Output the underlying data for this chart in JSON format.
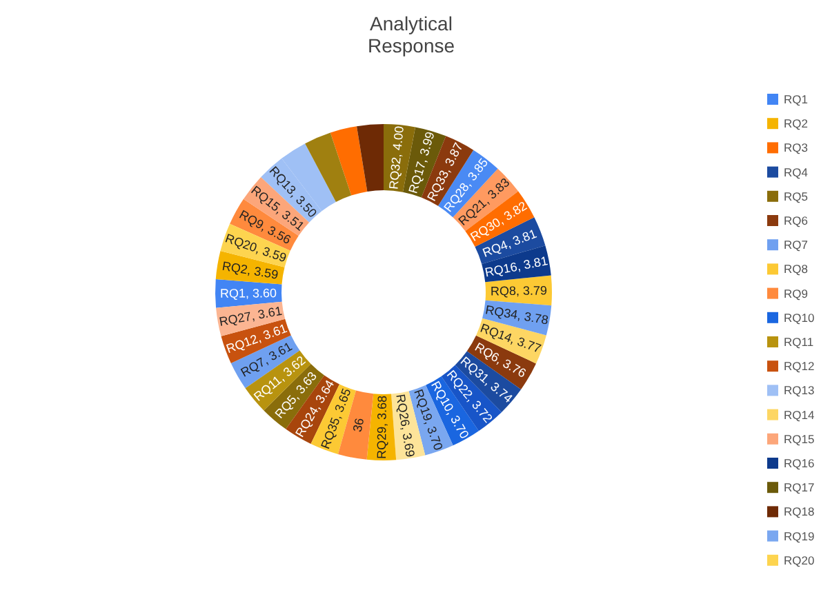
{
  "chart_data": {
    "type": "donut",
    "title": "Analytical\nResponse",
    "legend": "right",
    "categories": [
      "RQ1",
      "RQ2",
      "RQ3",
      "RQ4",
      "RQ5",
      "RQ6",
      "RQ7",
      "RQ8",
      "RQ9",
      "RQ10",
      "RQ11",
      "RQ12",
      "RQ13",
      "RQ14",
      "RQ15",
      "RQ16",
      "RQ17",
      "RQ18",
      "RQ19",
      "RQ20",
      null,
      null,
      null,
      null,
      null,
      null,
      null,
      null,
      null,
      null,
      null,
      null,
      null,
      null,
      null,
      "36"
    ],
    "values": [
      3.6,
      3.59,
      3.4,
      3.81,
      3.63,
      3.76,
      3.61,
      3.79,
      3.56,
      3.7,
      3.62,
      3.61,
      3.5,
      3.77,
      3.51,
      3.81,
      3.99,
      3.38,
      3.7,
      3.59,
      3.83,
      3.72,
      3.48,
      3.64,
      3.45,
      3.69,
      3.61,
      3.85,
      3.68,
      3.82,
      3.74,
      4.0,
      3.87,
      3.78,
      3.65,
      3.66
    ],
    "value_labels": [
      "RQ1, 3.60",
      "RQ2, 3.59",
      null,
      "RQ4, 3.81",
      "RQ5, 3.63",
      "RQ6, 3.76",
      "RQ7, 3.61",
      "RQ8, 3.79",
      "RQ9, 3.56",
      "RQ10, 3.70",
      "RQ11, 3.62",
      "RQ12, 3.61",
      "RQ13, 3.50",
      "RQ14, 3.77",
      "RQ15, 3.51",
      "RQ16, 3.81",
      "RQ17, 3.99",
      null,
      "RQ19, 3.70",
      "RQ20, 3.59",
      "RQ21, 3.83",
      "RQ22, 3.72",
      null,
      "RQ24, 3.64",
      null,
      "RQ26, 3.69",
      "RQ27, 3.61",
      "RQ28, 3.85",
      "RQ29, 3.68",
      "RQ30, 3.82",
      "RQ31, 3.74",
      "RQ32, 4.00",
      "RQ33, 3.87",
      "RQ34, 3.78",
      "RQ35, 3.65",
      null
    ],
    "colors": [
      "#4285f4",
      "#f5b400",
      "#ff6d01",
      "#1c4ba0",
      "#8a6d0b",
      "#8b3a0e",
      "#6fa0f0",
      "#fcc934",
      "#ff8a3d",
      "#1a66e0",
      "#b8930f",
      "#c8520f",
      "#9fc0f5",
      "#fdd663",
      "#fca67a",
      "#0d3a8c",
      "#6b5a0a",
      "#6e2a05",
      "#7aa7f0",
      "#fdd44f",
      "#ff9a60",
      "#1855c8",
      "#9fc0f5",
      "#a8450c",
      "#a08010",
      "#fde49a",
      "#fbb592",
      "#4a8af4",
      "#f5b400",
      "#ff6d01",
      "#1c4ba0",
      "#8a6d0b",
      "#8b3a0e",
      "#6fa0f0",
      "#fcc934",
      "#ff8a3d"
    ]
  }
}
